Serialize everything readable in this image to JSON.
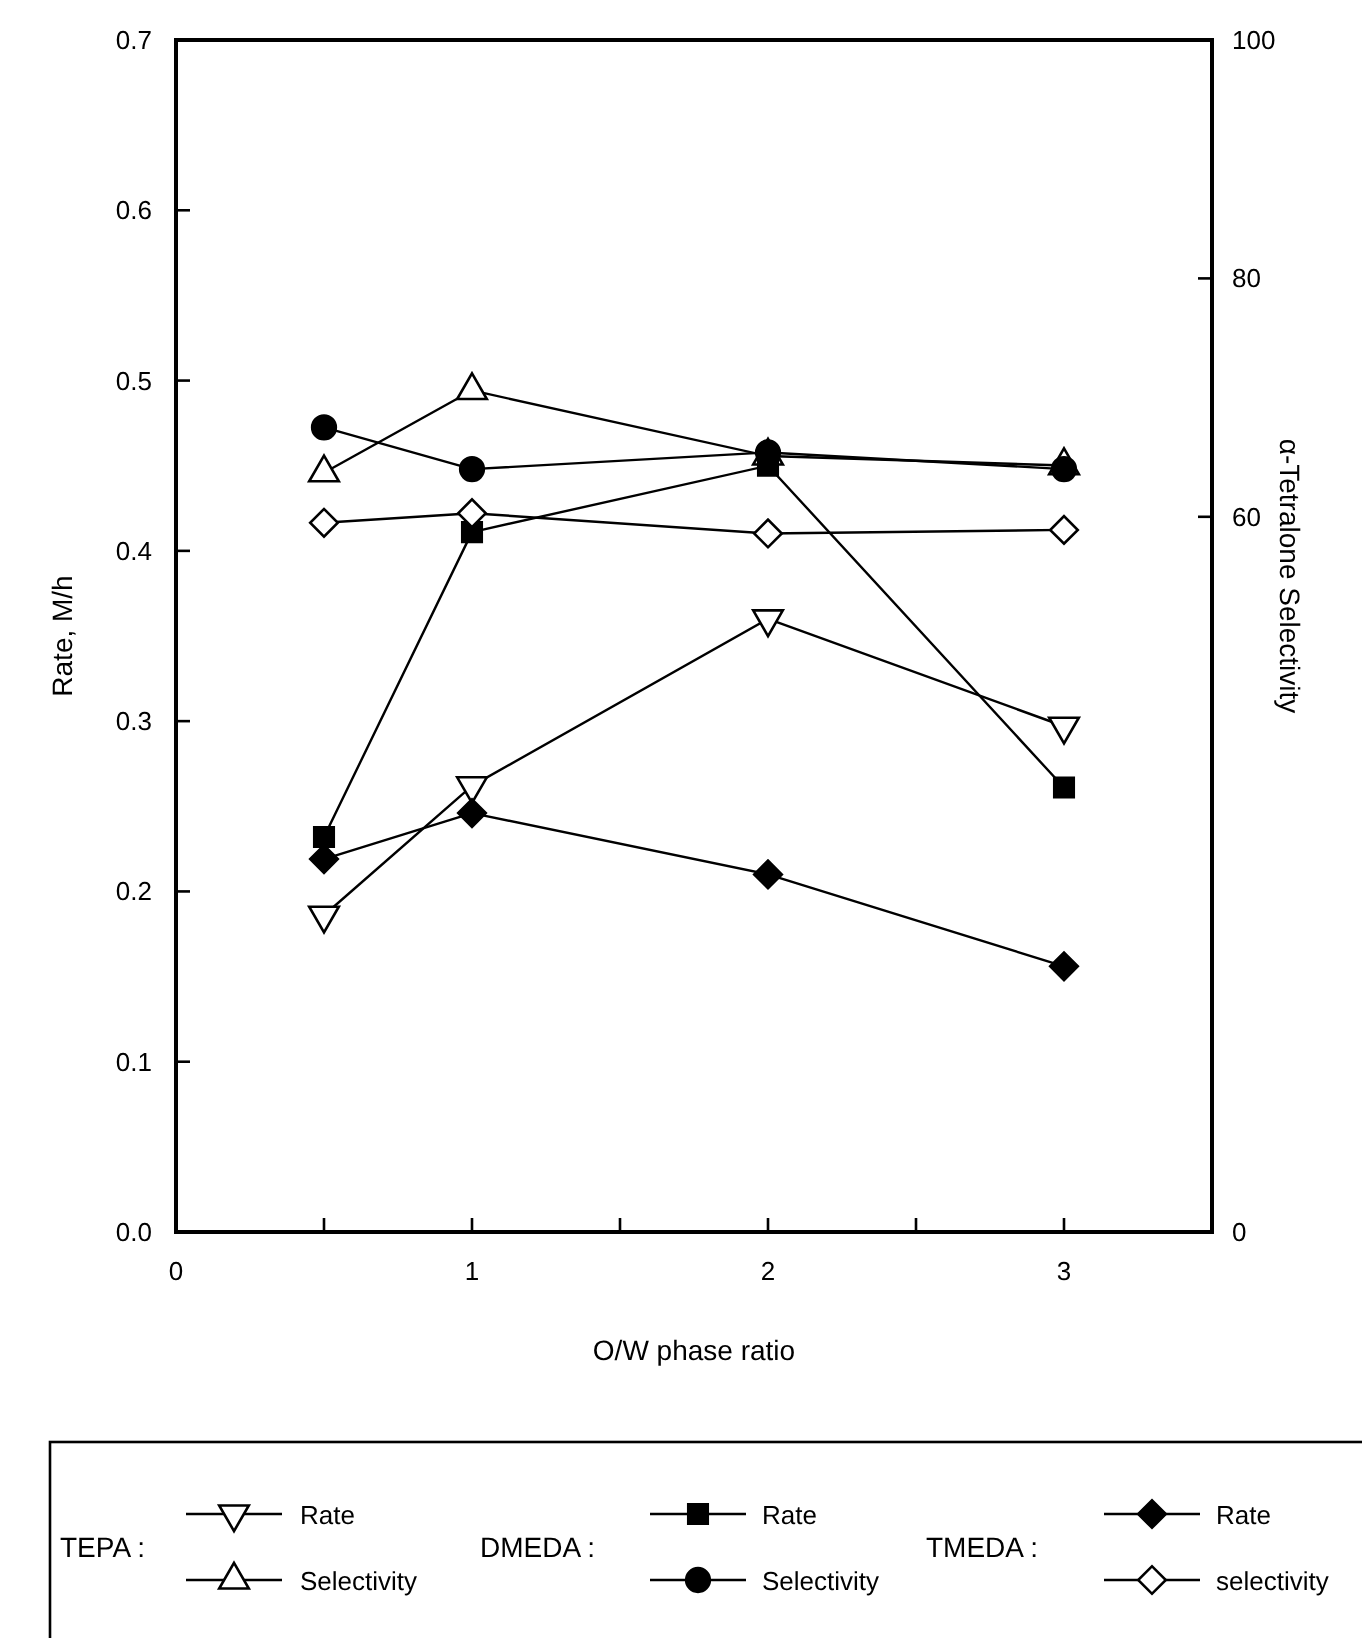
{
  "chart_data": {
    "type": "line",
    "xlabel": "O/W phase ratio",
    "ylabel": "Rate, M/h",
    "y2label": "α-Tetralone Selectivity",
    "xlim": [
      0,
      3.5
    ],
    "xticks": [
      0,
      {
        "value": 0.5,
        "label": null
      },
      1,
      {
        "value": 1.5,
        "label": null
      },
      2,
      {
        "value": 2.5,
        "label": null
      },
      3
    ],
    "ylim": [
      0,
      0.7
    ],
    "yticks": [
      {
        "value": 0,
        "label": "0.0"
      },
      0.1,
      0.2,
      0.3,
      0.4,
      0.5,
      0.6,
      0.7
    ],
    "y2lim": [
      0,
      100
    ],
    "y2ticks": [
      0,
      60,
      80,
      100
    ],
    "x": [
      0.5,
      1,
      2,
      3
    ],
    "legend": "bottom",
    "grid": false,
    "line_style": "solid",
    "annotations": [
      "TEPA :",
      "DMEDA :",
      "TMEDA :"
    ],
    "series": [
      {
        "name": "Rate",
        "color": "#000000",
        "marker": "triangle-down-open",
        "values": [
          0.186,
          0.262,
          0.36,
          0.297
        ]
      },
      {
        "name": "Selectivity",
        "color": "#000000",
        "marker": "triangle-open",
        "axis": "y2",
        "values": [
          63.7,
          70.6,
          65.1,
          64.3
        ]
      },
      {
        "name": "Rate",
        "color": "#000000",
        "marker": "square",
        "values": [
          0.232,
          0.411,
          0.45,
          0.261
        ]
      },
      {
        "name": "Selectivity",
        "color": "#000000",
        "marker": "circle",
        "axis": "y2",
        "values": [
          67.5,
          64.0,
          65.4,
          64.0
        ]
      },
      {
        "name": "Rate",
        "color": "#000000",
        "marker": "diamond",
        "values": [
          0.219,
          0.246,
          0.21,
          0.156
        ]
      },
      {
        "name": "selectivity",
        "color": "#000000",
        "marker": "diamond-open",
        "axis": "y2",
        "values": [
          59.5,
          60.3,
          58.6,
          58.9
        ]
      }
    ]
  }
}
